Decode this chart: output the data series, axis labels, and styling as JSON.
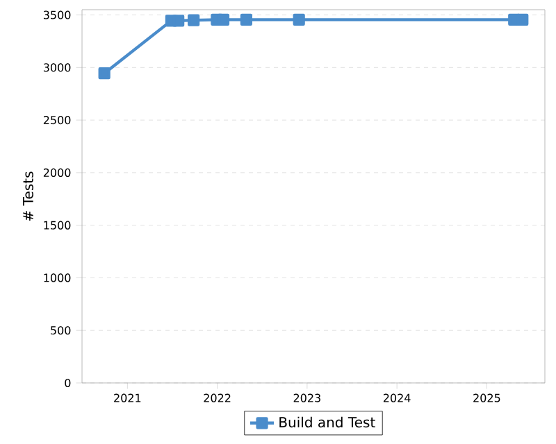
{
  "chart_data": {
    "type": "line",
    "ylabel": "# Tests",
    "x": [
      "2020-09-29",
      "2021-06-28",
      "2021-07-27",
      "2021-09-27",
      "2021-12-30",
      "2022-01-26",
      "2022-04-29",
      "2022-11-29",
      "2025-04-22",
      "2025-05-26"
    ],
    "series": [
      {
        "name": "Build and Test",
        "color": "#4a8ccb",
        "values": [
          2945,
          3445,
          3445,
          3450,
          3455,
          3455,
          3455,
          3455,
          3455,
          3455
        ]
      }
    ],
    "xlim": [
      "2020-06-30",
      "2025-08-25"
    ],
    "xticks": [
      "2021",
      "2022",
      "2023",
      "2024",
      "2025"
    ],
    "ylim": [
      0,
      3550
    ],
    "yticks": [
      0,
      500,
      1000,
      1500,
      2000,
      2500,
      3000,
      3500
    ],
    "grid": "y",
    "legend": "bottom",
    "marker": "square",
    "line_style": "solid"
  }
}
